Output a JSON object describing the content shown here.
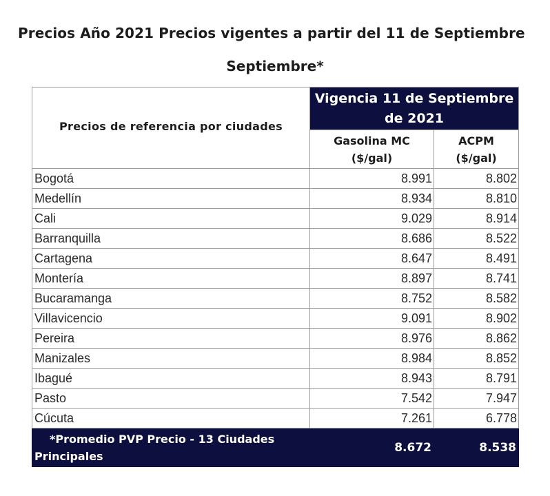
{
  "title": {
    "line1": "Precios Año 2021 Precios vigentes a partir del 11 de Septiembre",
    "line2": "Septiembre*"
  },
  "table": {
    "city_header": "Precios de referencia por ciudades",
    "period_header": "Vigencia 11 de Septiembre de 2021",
    "columns": [
      {
        "name": "Gasolina MC",
        "unit": "($/gal)"
      },
      {
        "name": "ACPM",
        "unit": "($/gal)"
      }
    ],
    "rows": [
      {
        "city": "Bogotá",
        "gasolina": "8.991",
        "acpm": "8.802"
      },
      {
        "city": "Medellín",
        "gasolina": "8.934",
        "acpm": "8.810"
      },
      {
        "city": "Cali",
        "gasolina": "9.029",
        "acpm": "8.914"
      },
      {
        "city": "Barranquilla",
        "gasolina": "8.686",
        "acpm": "8.522"
      },
      {
        "city": "Cartagena",
        "gasolina": "8.647",
        "acpm": "8.491"
      },
      {
        "city": "Montería",
        "gasolina": "8.897",
        "acpm": "8.741"
      },
      {
        "city": "Bucaramanga",
        "gasolina": "8.752",
        "acpm": "8.582"
      },
      {
        "city": "Villavicencio",
        "gasolina": "9.091",
        "acpm": "8.902"
      },
      {
        "city": "Pereira",
        "gasolina": "8.976",
        "acpm": "8.862"
      },
      {
        "city": "Manizales",
        "gasolina": "8.984",
        "acpm": "8.852"
      },
      {
        "city": "Ibagué",
        "gasolina": "8.943",
        "acpm": "8.791"
      },
      {
        "city": "Pasto",
        "gasolina": "7.542",
        "acpm": "7.947"
      },
      {
        "city": "Cúcuta",
        "gasolina": "7.261",
        "acpm": "6.778"
      }
    ],
    "footer": {
      "label": "*Promedio PVP Precio - 13 Ciudades Principales",
      "gasolina": "8.672",
      "acpm": "8.538"
    }
  },
  "colors": {
    "header_bg": "#0d0f3e",
    "header_text": "#ffffff",
    "grid": "#9a9a9a"
  }
}
